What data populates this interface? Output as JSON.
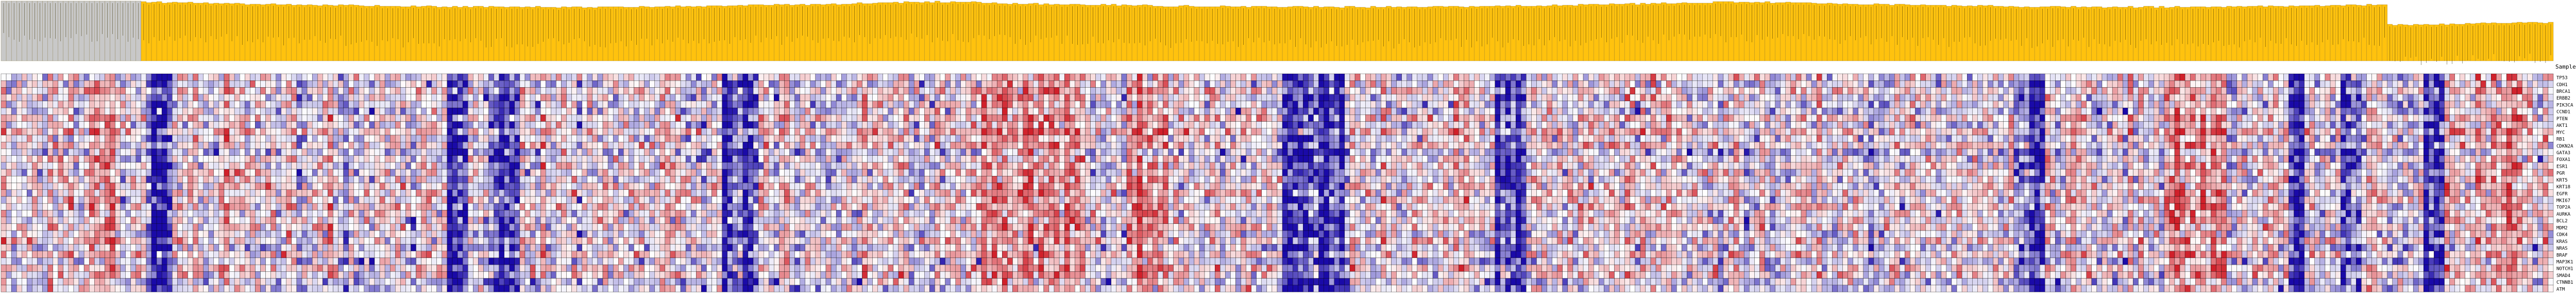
{
  "chart_data": {
    "type": "heatmap",
    "column_groups": [
      {
        "name": "",
        "color": "#c8c8c8"
      },
      {
        "name": "",
        "color": "#ffc20e"
      }
    ],
    "row_header": "SampleName",
    "color_scale": {
      "low": "#1a0aa8",
      "mid": "#ffffff",
      "high": "#d0202a",
      "range": [
        -3,
        3
      ],
      "cell_border": "#000000"
    },
    "rows": [
      "TP53",
      "CDH1",
      "BRCA1",
      "ERBB2",
      "PIK3CA",
      "CCND1",
      "PTEN",
      "AKT1",
      "MYC",
      "RB1",
      "CDKN2A",
      "GATA3",
      "FOXA1",
      "ESR1",
      "PGR",
      "KRT5",
      "KRT18",
      "EGFR",
      "MKI67",
      "TOP2A",
      "AURKA",
      "BCL2",
      "MDM2",
      "CDK4",
      "KRAS",
      "NRAS",
      "BRAF",
      "MAP3K1",
      "NOTCH1",
      "SMAD4",
      "CTNNB1",
      "ATM"
    ]
  }
}
